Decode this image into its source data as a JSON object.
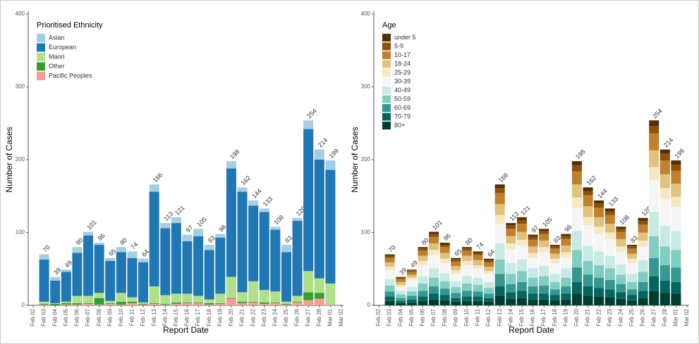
{
  "chart_data": [
    {
      "type": "bar",
      "stacked": true,
      "legend_title": "Prioritised Ethnicity",
      "legend": "top-left",
      "x_label": "Report Date",
      "y_label": "Number of Cases",
      "categories": [
        "Feb 02",
        "Feb 03",
        "Feb 04",
        "Feb 05",
        "Feb 06",
        "Feb 07",
        "Feb 08",
        "Feb 09",
        "Feb 10",
        "Feb 11",
        "Feb 12",
        "Feb 13",
        "Feb 14",
        "Feb 15",
        "Feb 16",
        "Feb 17",
        "Feb 18",
        "Feb 19",
        "Feb 20",
        "Feb 21",
        "Feb 22",
        "Feb 23",
        "Feb 24",
        "Feb 25",
        "Feb 26",
        "Feb 27",
        "Feb 28",
        "Mar 01",
        "Mar 02"
      ],
      "ylim": [
        0,
        400
      ],
      "yticks": [
        0,
        100,
        200,
        300,
        400
      ],
      "totals": [
        null,
        70,
        39,
        49,
        80,
        101,
        86,
        65,
        80,
        74,
        64,
        166,
        113,
        121,
        97,
        105,
        83,
        98,
        198,
        162,
        144,
        133,
        108,
        83,
        120,
        254,
        214,
        199,
        null
      ],
      "series": [
        {
          "name": "Asian",
          "color": "#a6cee3",
          "values": [
            null,
            7,
            5,
            3,
            8,
            5,
            3,
            4,
            7,
            9,
            5,
            10,
            7,
            8,
            9,
            10,
            7,
            5,
            10,
            6,
            7,
            5,
            4,
            10,
            4,
            12,
            14,
            13,
            null
          ]
        },
        {
          "name": "European",
          "color": "#1f78b4",
          "values": [
            null,
            58,
            31,
            41,
            59,
            83,
            66,
            55,
            56,
            54,
            55,
            130,
            92,
            97,
            72,
            82,
            68,
            77,
            149,
            138,
            104,
            107,
            85,
            68,
            103,
            195,
            163,
            156,
            null
          ]
        },
        {
          "name": "Maori",
          "color": "#b2df8a",
          "values": [
            null,
            3,
            1,
            2,
            10,
            10,
            7,
            3,
            12,
            6,
            2,
            23,
            12,
            12,
            12,
            9,
            5,
            13,
            29,
            13,
            28,
            17,
            15,
            3,
            8,
            29,
            20,
            29,
            null
          ]
        },
        {
          "name": "Other",
          "color": "#33a02c",
          "values": [
            null,
            1,
            2,
            2,
            2,
            1,
            9,
            1,
            4,
            2,
            1,
            1,
            1,
            2,
            1,
            1,
            2,
            1,
            1,
            2,
            1,
            2,
            1,
            1,
            1,
            11,
            8,
            0,
            null
          ]
        },
        {
          "name": "Pacific Peoples",
          "color": "#fb9a99",
          "values": [
            null,
            1,
            0,
            1,
            1,
            2,
            1,
            2,
            1,
            3,
            1,
            2,
            1,
            2,
            3,
            3,
            1,
            2,
            9,
            3,
            4,
            2,
            3,
            1,
            4,
            7,
            9,
            1,
            null
          ]
        }
      ]
    },
    {
      "type": "bar",
      "stacked": true,
      "legend_title": "Age",
      "legend": "top-left",
      "x_label": "Report Date",
      "y_label": "Number of Cases",
      "categories": [
        "Feb 02",
        "Feb 03",
        "Feb 04",
        "Feb 05",
        "Feb 06",
        "Feb 07",
        "Feb 08",
        "Feb 09",
        "Feb 10",
        "Feb 11",
        "Feb 12",
        "Feb 13",
        "Feb 14",
        "Feb 15",
        "Feb 16",
        "Feb 17",
        "Feb 18",
        "Feb 19",
        "Feb 20",
        "Feb 21",
        "Feb 22",
        "Feb 23",
        "Feb 24",
        "Feb 25",
        "Feb 26",
        "Feb 27",
        "Feb 28",
        "Mar 01",
        "Mar 02"
      ],
      "ylim": [
        0,
        400
      ],
      "yticks": [
        0,
        100,
        200,
        300,
        400
      ],
      "totals": [
        null,
        70,
        39,
        49,
        80,
        101,
        86,
        65,
        80,
        74,
        64,
        166,
        113,
        121,
        97,
        105,
        83,
        98,
        198,
        162,
        144,
        133,
        108,
        83,
        120,
        254,
        214,
        199,
        null
      ],
      "series": [
        {
          "name": "under 5",
          "color": "#543005",
          "values": [
            null,
            2,
            1,
            1,
            2,
            3,
            3,
            2,
            2,
            2,
            2,
            5,
            3,
            4,
            3,
            3,
            2,
            3,
            6,
            5,
            4,
            4,
            3,
            2,
            4,
            8,
            6,
            6,
            null
          ]
        },
        {
          "name": "5-9",
          "color": "#8c510a",
          "values": [
            null,
            3,
            2,
            2,
            3,
            4,
            3,
            3,
            3,
            3,
            3,
            7,
            5,
            5,
            4,
            4,
            3,
            4,
            8,
            6,
            6,
            5,
            4,
            3,
            5,
            10,
            9,
            8,
            null
          ]
        },
        {
          "name": "10-17",
          "color": "#bf812d",
          "values": [
            null,
            6,
            4,
            4,
            7,
            9,
            8,
            6,
            7,
            7,
            6,
            15,
            10,
            11,
            9,
            9,
            7,
            9,
            18,
            15,
            13,
            12,
            10,
            7,
            11,
            23,
            19,
            18,
            null
          ]
        },
        {
          "name": "18-24",
          "color": "#dfc27d",
          "values": [
            null,
            6,
            4,
            4,
            7,
            9,
            8,
            6,
            7,
            7,
            6,
            15,
            10,
            11,
            9,
            9,
            7,
            9,
            18,
            15,
            13,
            12,
            10,
            7,
            11,
            23,
            19,
            18,
            null
          ]
        },
        {
          "name": "25-29",
          "color": "#f6e8c3",
          "values": [
            null,
            5,
            3,
            3,
            6,
            7,
            6,
            5,
            6,
            5,
            4,
            12,
            8,
            8,
            7,
            7,
            6,
            7,
            14,
            11,
            10,
            9,
            8,
            6,
            8,
            18,
            15,
            14,
            null
          ]
        },
        {
          "name": "30-39",
          "color": "#f5f5f5",
          "values": [
            null,
            12,
            5,
            10,
            15,
            18,
            14,
            10,
            15,
            12,
            11,
            27,
            19,
            19,
            14,
            19,
            15,
            15,
            32,
            28,
            24,
            23,
            17,
            15,
            19,
            44,
            37,
            33,
            null
          ]
        },
        {
          "name": "40-49",
          "color": "#c7eae5",
          "values": [
            null,
            9,
            5,
            6,
            10,
            13,
            11,
            8,
            10,
            10,
            8,
            22,
            15,
            16,
            13,
            14,
            11,
            13,
            26,
            21,
            19,
            17,
            14,
            11,
            16,
            33,
            28,
            26,
            null
          ]
        },
        {
          "name": "50-59",
          "color": "#80cdc1",
          "values": [
            null,
            8,
            5,
            6,
            10,
            12,
            10,
            8,
            10,
            9,
            8,
            20,
            14,
            15,
            12,
            13,
            10,
            12,
            24,
            19,
            17,
            16,
            13,
            10,
            14,
            30,
            26,
            24,
            null
          ]
        },
        {
          "name": "60-69",
          "color": "#35978f",
          "values": [
            null,
            7,
            4,
            5,
            8,
            10,
            9,
            7,
            8,
            7,
            6,
            17,
            11,
            12,
            10,
            11,
            8,
            10,
            20,
            16,
            14,
            13,
            11,
            8,
            12,
            25,
            21,
            20,
            null
          ]
        },
        {
          "name": "70-79",
          "color": "#01665e",
          "values": [
            null,
            6,
            3,
            4,
            6,
            8,
            7,
            5,
            6,
            6,
            5,
            13,
            9,
            10,
            8,
            8,
            7,
            8,
            16,
            13,
            12,
            11,
            9,
            7,
            10,
            20,
            17,
            16,
            null
          ]
        },
        {
          "name": "80+",
          "color": "#003c30",
          "values": [
            null,
            6,
            3,
            4,
            6,
            8,
            7,
            5,
            6,
            6,
            5,
            13,
            9,
            10,
            8,
            8,
            7,
            8,
            16,
            13,
            12,
            11,
            9,
            7,
            10,
            20,
            17,
            16,
            null
          ]
        }
      ]
    }
  ]
}
